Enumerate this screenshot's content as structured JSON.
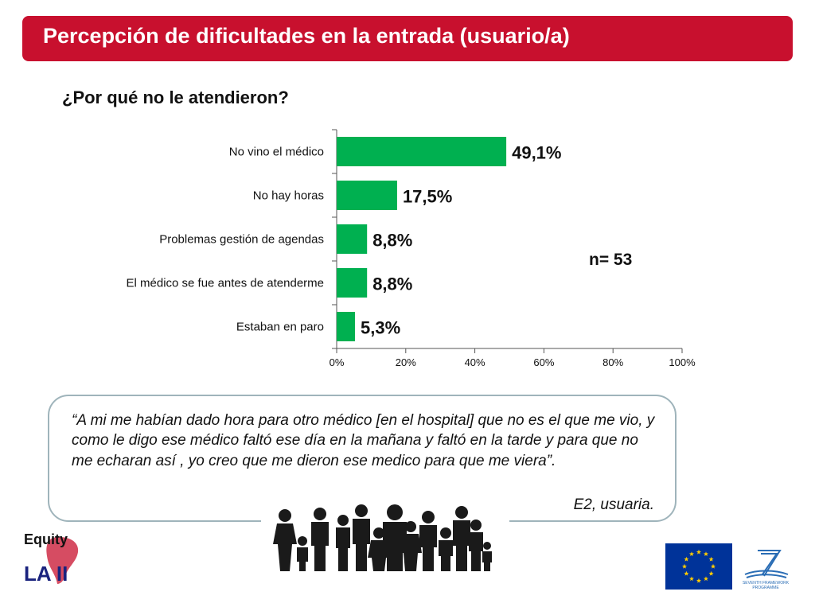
{
  "header": {
    "title": "Percepción de dificultades en la entrada (usuario/a)"
  },
  "subtitle": "¿Por qué no le atendieron?",
  "chart_data": {
    "type": "bar",
    "orientation": "horizontal",
    "categories": [
      "No vino el médico",
      "No hay horas",
      "Problemas gestión de agendas",
      "El médico se fue antes de atenderme",
      "Estaban en paro"
    ],
    "values": [
      49.1,
      17.5,
      8.8,
      8.8,
      5.3
    ],
    "data_labels": [
      "49,1%",
      "17,5%",
      "8,8%",
      "8,8%",
      "5,3%"
    ],
    "xlim": [
      0,
      100
    ],
    "xticks": [
      0,
      20,
      40,
      60,
      80,
      100
    ],
    "xtick_labels": [
      "0%",
      "20%",
      "40%",
      "60%",
      "80%",
      "100%"
    ],
    "bar_color": "#00b050",
    "grid": false,
    "annotation": "n= 53"
  },
  "quote": {
    "text": "“A mi me habían dado hora para otro médico [en el hospital] que no es el que me vio, y como le digo ese médico faltó ese día en la mañana y faltó en la tarde y para que no me echaran así , yo creo que me dieron ese medico para que me viera”.",
    "author": "E2, usuaria."
  },
  "logos": {
    "equity_top": "Equity",
    "equity_bottom": "LA II",
    "fp7_line1": "SEVENTH FRAMEWORK",
    "fp7_line2": "PROGRAMME"
  },
  "colors": {
    "accent": "#c8102e",
    "bar": "#00b050",
    "eu_blue": "#003399",
    "eu_star": "#ffcc00"
  },
  "icons": [
    "people-group-icon",
    "eu-flag-icon",
    "fp7-logo-icon",
    "equity-logo-icon"
  ]
}
